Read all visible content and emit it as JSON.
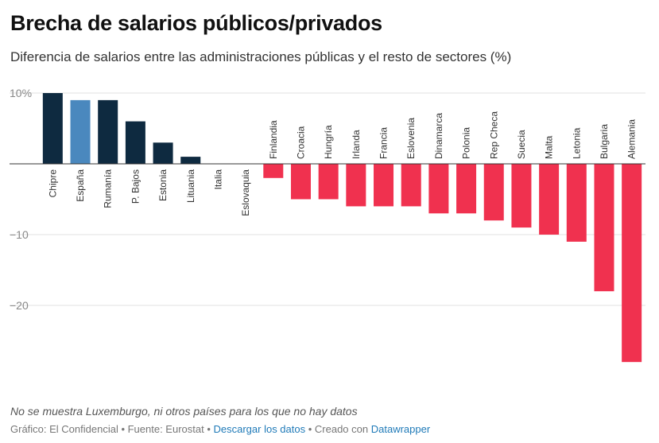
{
  "header": {
    "title": "Brecha de salarios públicos/privados",
    "subtitle": "Diferencia de salarios entre las administraciones públicas y el resto de sectores (%)"
  },
  "chart_data": {
    "type": "bar",
    "title": "Brecha de salarios públicos/privados",
    "subtitle": "Diferencia de salarios entre las administraciones públicas y el resto de sectores (%)",
    "xlabel": "",
    "ylabel": "",
    "ylim": [
      -28,
      10
    ],
    "yticks": [
      10,
      0,
      -10,
      -20
    ],
    "ytick_labels": [
      "10%",
      "",
      "−10",
      "−20"
    ],
    "grid": true,
    "categories": [
      "Chipre",
      "España",
      "Rumanía",
      "P. Bajos",
      "Estonia",
      "Lituania",
      "Italia",
      "Eslovaquia",
      "Finlandia",
      "Croacia",
      "Hungría",
      "Irlanda",
      "Francia",
      "Eslovenia",
      "Dinamarca",
      "Polonia",
      "Rep Checa",
      "Suecia",
      "Malta",
      "Letonia",
      "Bulgaria",
      "Alemania"
    ],
    "values": [
      10,
      9,
      9,
      6,
      3,
      1,
      0,
      0,
      -2,
      -5,
      -5,
      -6,
      -6,
      -6,
      -7,
      -7,
      -8,
      -9,
      -10,
      -11,
      -18,
      -28
    ],
    "colors": {
      "positive": "#0e2a40",
      "highlight": "#4a88be",
      "negative": "#f0314f",
      "highlight_category": "España"
    }
  },
  "footer": {
    "note": "No se muestra Luxemburgo, ni otros países para los que no hay datos",
    "prefix": "Gráfico: El Confidencial • Fuente: Eurostat • ",
    "download_link": "Descargar los datos",
    "middle": " • Creado con ",
    "creator_link": "Datawrapper"
  }
}
